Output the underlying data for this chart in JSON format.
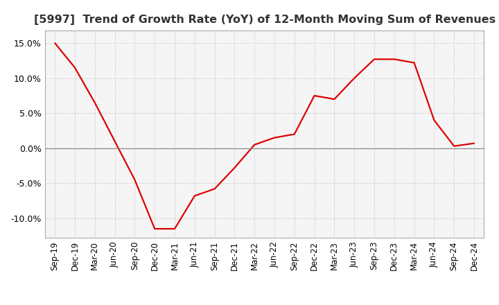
{
  "title": "[5997]  Trend of Growth Rate (YoY) of 12-Month Moving Sum of Revenues",
  "line_color": "#dd0000",
  "background_color": "#ffffff",
  "plot_bg_color": "#f5f5f5",
  "grid_color": "#bbbbbb",
  "zero_line_color": "#888888",
  "spine_color": "#aaaaaa",
  "ylim": [
    -0.128,
    0.168
  ],
  "yticks": [
    -0.1,
    -0.05,
    0.0,
    0.05,
    0.1,
    0.15
  ],
  "x_labels": [
    "Sep-19",
    "Dec-19",
    "Mar-20",
    "Jun-20",
    "Sep-20",
    "Dec-20",
    "Mar-21",
    "Jun-21",
    "Sep-21",
    "Dec-21",
    "Mar-22",
    "Jun-22",
    "Sep-22",
    "Dec-22",
    "Mar-23",
    "Jun-23",
    "Sep-23",
    "Dec-23",
    "Mar-24",
    "Jun-24",
    "Sep-24",
    "Dec-24"
  ],
  "y_values": [
    0.15,
    0.115,
    0.065,
    0.01,
    -0.045,
    -0.115,
    -0.115,
    -0.068,
    -0.058,
    -0.028,
    0.005,
    0.015,
    0.02,
    0.075,
    0.07,
    0.1,
    0.127,
    0.127,
    0.122,
    0.04,
    0.003,
    0.007
  ],
  "title_fontsize": 11.5,
  "tick_fontsize": 8.5,
  "ytick_fontsize": 9
}
